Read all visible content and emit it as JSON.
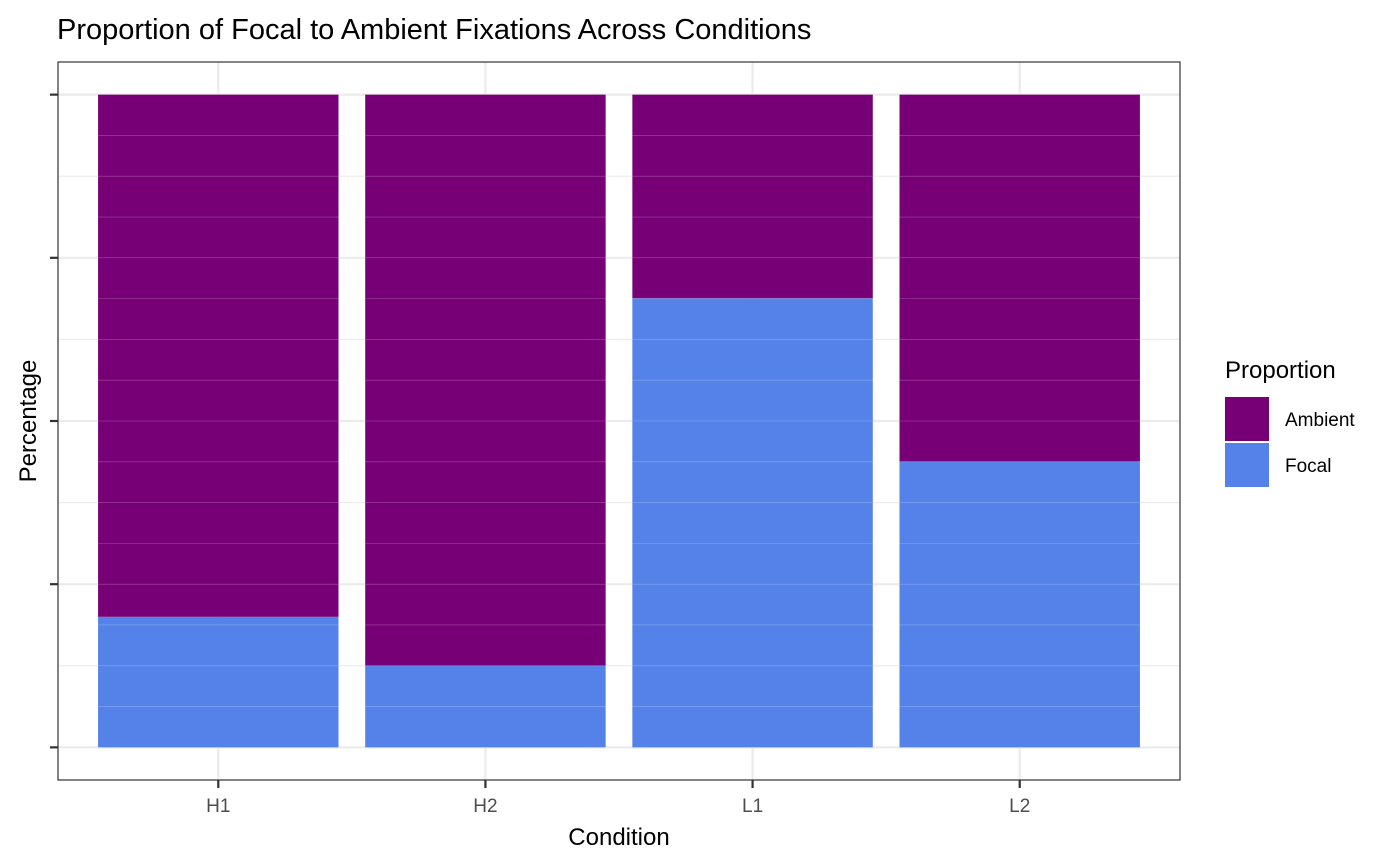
{
  "chart_data": {
    "type": "bar",
    "stacked": true,
    "title": "Proportion of Focal to Ambient Fixations Across Conditions",
    "xlabel": "Condition",
    "ylabel": "Percentage",
    "categories": [
      "H1",
      "H2",
      "L1",
      "L2"
    ],
    "series": [
      {
        "name": "Focal",
        "color": "#5482E8",
        "values": [
          0.2,
          0.125,
          0.688,
          0.438
        ]
      },
      {
        "name": "Ambient",
        "color": "#770077",
        "values": [
          0.8,
          0.875,
          0.312,
          0.562
        ]
      }
    ],
    "ylim": [
      -0.05,
      1.05
    ],
    "y_tick_labels_shown": false,
    "grid": true,
    "legend": {
      "title": "Proportion",
      "position": "right",
      "entries": [
        {
          "label": "Ambient",
          "color": "#770077"
        },
        {
          "label": "Focal",
          "color": "#5482E8"
        }
      ]
    }
  }
}
